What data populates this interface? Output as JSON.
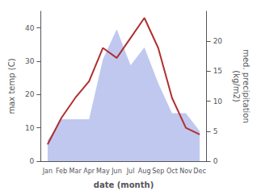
{
  "chart_data": {
    "type": "line",
    "categories": [
      "Jan",
      "Feb",
      "Mar",
      "Apr",
      "May",
      "Jun",
      "Jul",
      "Aug",
      "Sep",
      "Oct",
      "Nov",
      "Dec"
    ],
    "xlabel": "date (month)",
    "ylabel": "max temp (C)",
    "y2label": "med. precipitation\n(kg/m2)",
    "ylim": [
      0,
      45
    ],
    "yticks": [
      0,
      10,
      20,
      30,
      40
    ],
    "y2lim": [
      0,
      25
    ],
    "y2ticks": [
      0,
      5,
      10,
      15,
      20
    ],
    "grid": false,
    "series": [
      {
        "type": "area",
        "color": "#c0c8f0",
        "axis": "y2",
        "values": [
          3.5,
          7,
          7,
          7,
          17,
          22,
          16,
          19,
          13,
          8,
          8,
          5
        ]
      },
      {
        "type": "line",
        "color": "#b03030",
        "values": [
          5,
          13,
          19,
          24,
          34,
          31,
          37,
          43,
          34,
          19,
          10,
          8
        ]
      }
    ]
  }
}
